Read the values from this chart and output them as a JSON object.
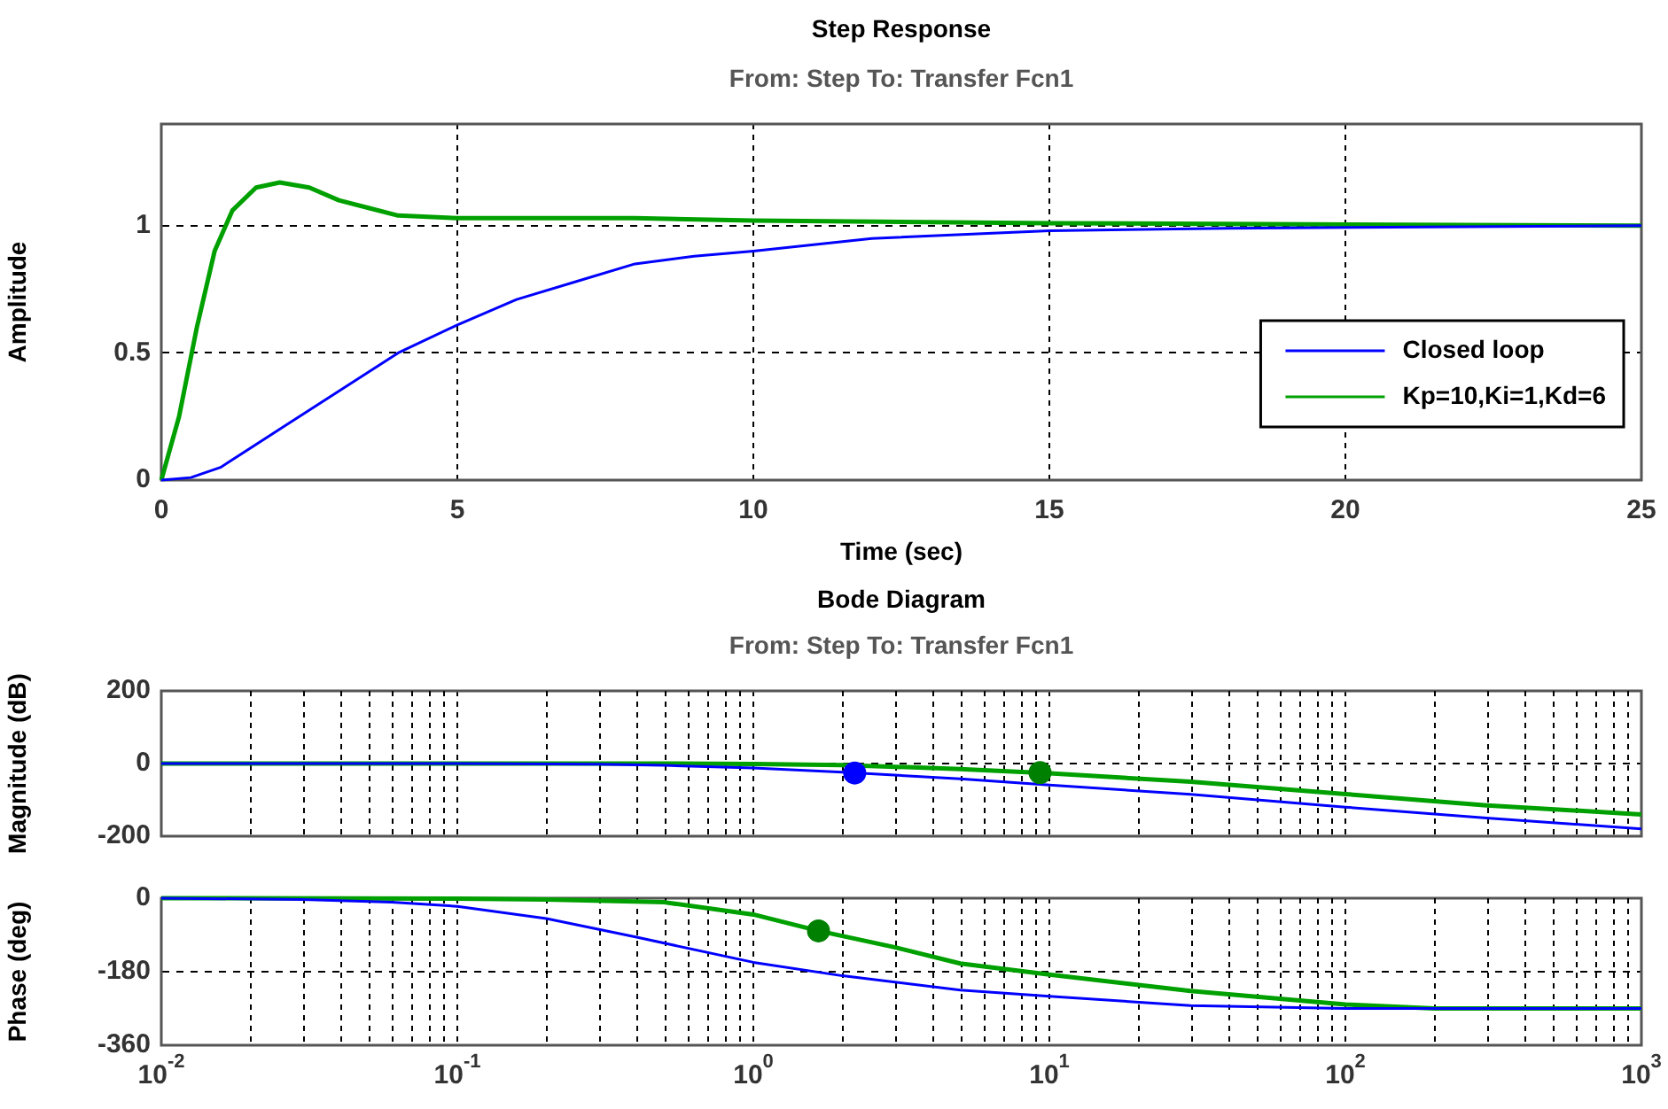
{
  "chart_data": [
    {
      "type": "line",
      "title": "Step Response",
      "subtitle": "From: Step  To: Transfer Fcn1",
      "xlabel": "Time (sec)",
      "ylabel": "Amplitude",
      "xlim": [
        0,
        25
      ],
      "xticks": [
        0,
        5,
        10,
        15,
        20,
        25
      ],
      "ylim": [
        0,
        1.4
      ],
      "yticks": [
        0,
        0.5,
        1
      ],
      "grid": true,
      "legend": "bottom right",
      "series": [
        {
          "name": "Closed loop",
          "color": "#0000ff",
          "x": [
            0,
            0.5,
            1,
            2,
            3,
            4,
            5,
            6,
            7,
            8,
            9,
            10,
            12,
            15,
            18,
            25
          ],
          "values": [
            0,
            0.01,
            0.05,
            0.2,
            0.35,
            0.5,
            0.61,
            0.71,
            0.78,
            0.85,
            0.88,
            0.9,
            0.95,
            0.98,
            0.99,
            1
          ]
        },
        {
          "name": "Kp=10,Ki=1,Kd=6",
          "color": "#00a000",
          "x": [
            0,
            0.3,
            0.6,
            0.9,
            1.2,
            1.6,
            2,
            2.5,
            3,
            3.5,
            4,
            5,
            8,
            10,
            15,
            25
          ],
          "values": [
            0,
            0.25,
            0.6,
            0.9,
            1.06,
            1.15,
            1.17,
            1.15,
            1.1,
            1.07,
            1.04,
            1.03,
            1.03,
            1.02,
            1.01,
            1
          ]
        }
      ]
    },
    {
      "type": "line",
      "title": "Bode Diagram",
      "subtitle": "From: Step  To: Transfer Fcn1",
      "ylabel": "Magnitude (dB)",
      "log": "x",
      "xlim": [
        0.01,
        1000
      ],
      "xticks": [
        0.01,
        0.1,
        1,
        10,
        100,
        1000
      ],
      "ylim": [
        -200,
        200
      ],
      "yticks": [
        -200,
        0,
        200
      ],
      "grid": true,
      "tick_labels": "y",
      "series": [
        {
          "color": "#0000ff",
          "x": [
            0.01,
            0.1,
            0.3,
            0.5,
            1,
            2,
            5,
            10,
            30,
            100,
            300,
            1000
          ],
          "values": [
            0,
            0,
            -2,
            -5,
            -12,
            -24,
            -42,
            -59,
            -85,
            -120,
            -150,
            -180
          ]
        },
        {
          "color": "#00a000",
          "x": [
            0.01,
            0.1,
            0.5,
            1,
            2,
            5,
            10,
            30,
            100,
            300,
            1000
          ],
          "values": [
            0,
            0,
            0,
            -1,
            -4,
            -15,
            -27,
            -50,
            -84,
            -115,
            -140
          ]
        },
        {
          "type": "scatter",
          "marker": "circle",
          "color": "#0000ff",
          "x": [
            2.2
          ],
          "values": [
            -26
          ]
        },
        {
          "type": "scatter",
          "marker": "circle",
          "color": "#008000",
          "x": [
            9.3
          ],
          "values": [
            -25
          ]
        }
      ]
    },
    {
      "type": "line",
      "ylabel": "Phase (deg)",
      "log": "x",
      "xlim": [
        0.01,
        1000
      ],
      "xticks": [
        {
          "value": 0.01,
          "label": "10$^{-2}$"
        },
        {
          "value": 0.1,
          "label": "10$^{-1}$"
        },
        {
          "value": 1,
          "label": "10$^{0}$"
        },
        {
          "value": 10,
          "label": "10$^{1}$"
        },
        {
          "value": 100,
          "label": "10$^{2}$"
        },
        {
          "value": 1000,
          "label": "10$^{3}$"
        }
      ],
      "ylim": [
        -360,
        0
      ],
      "yticks": [
        -360,
        -180,
        0
      ],
      "grid": true,
      "series": [
        {
          "color": "#0000ff",
          "x": [
            0.01,
            0.03,
            0.06,
            0.1,
            0.2,
            0.4,
            1,
            2,
            5,
            10,
            30,
            100,
            1000
          ],
          "values": [
            0,
            -3,
            -10,
            -20,
            -50,
            -95,
            -157,
            -190,
            -225,
            -240,
            -263,
            -270,
            -270
          ]
        },
        {
          "color": "#00a000",
          "x": [
            0.01,
            0.1,
            0.2,
            0.5,
            1,
            1.66,
            3,
            5,
            10,
            30,
            100,
            200,
            1000
          ],
          "values": [
            0,
            -1,
            -3,
            -10,
            -40,
            -80,
            -120,
            -160,
            -187,
            -227,
            -260,
            -270,
            -270
          ]
        },
        {
          "type": "scatter",
          "marker": "circle",
          "color": "#008000",
          "x": [
            1.66
          ],
          "values": [
            -80
          ]
        }
      ]
    }
  ]
}
